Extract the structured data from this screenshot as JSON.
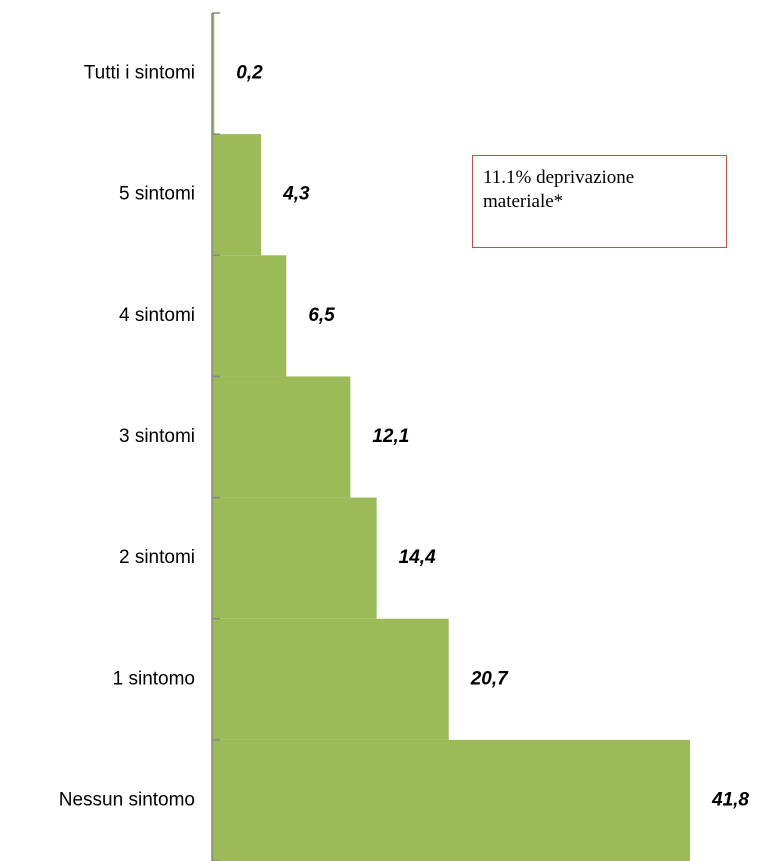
{
  "chart_data": {
    "type": "bar",
    "orientation": "horizontal",
    "categories": [
      "Tutti i sintomi",
      "5 sintomi",
      "4 sintomi",
      "3 sintomi",
      "2 sintomi",
      "1 sintomo",
      "Nessun sintomo"
    ],
    "values": [
      0.2,
      4.3,
      6.5,
      12.1,
      14.4,
      20.7,
      41.8
    ],
    "value_labels": [
      "0,2",
      "4,3",
      "6,5",
      "12,1",
      "14,4",
      "20,7",
      "41,8"
    ],
    "color": "#9bbb59",
    "annotation": "11.1% deprivazione materiale*"
  }
}
